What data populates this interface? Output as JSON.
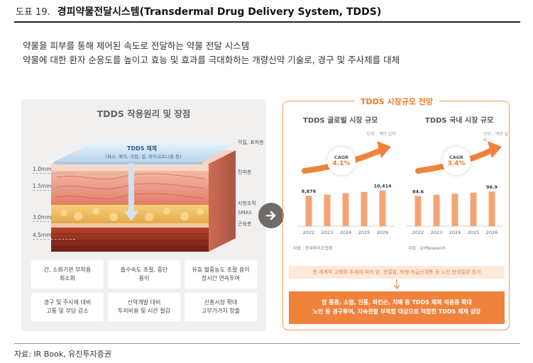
{
  "header": {
    "figure_number": "도표 19.",
    "title": "경피약물전달시스템(Transdermal Drug Delivery System, TDDS)"
  },
  "intro": {
    "line1": "약물을 피부를 통해 제어된 속도로 전달하는 약물 전달 시스템",
    "line2": "약물에 대한 환자 순응도를 높이고 효능 및 효과를 극대화하는 개량신약 기술로, 경구 및 주사제를 대체"
  },
  "left_panel": {
    "title": "TDDS 작용원리 및 장점",
    "formulation_title": "TDDS 제제",
    "formulation_sub": "(파스, 패치, 크림, 겔, 마이크로니들 등)",
    "depths": [
      "1.0mm",
      "1.5mm",
      "3.0mm",
      "4.5mm"
    ],
    "layers": [
      "각질, 표피층",
      "진피층",
      "지방조직",
      "SMAS",
      "근육층"
    ],
    "benefits": [
      "간, 소화기관 부작용\n최소화",
      "흡수속도 조절, 중단\n용이",
      "유효 혈중농도 조절 용이\n장시간 연속투여",
      "경구 및 주사제 대비\n고통 및 부담 감소",
      "신약개발 대비\n투자비용 및 시간 절감",
      "신흥시장 확대\n고부가가치 창출"
    ]
  },
  "right_panel": {
    "title": "TDDS 시장규모 전망",
    "global": {
      "title": "TDDS 글로벌 시장 규모",
      "unit": "단위 : 백만 달러",
      "cagr_label": "CAGR",
      "cagr_value": "4.1%",
      "source": "자료 : 한국바이오협회"
    },
    "domestic": {
      "title": "TDDS 국내 시장 규모",
      "unit": "단위 : 백만 달러",
      "cagr_label": "CAGR",
      "cagr_value": "3.4%",
      "source": "자료 : QYResearch"
    },
    "summary_line": "전 세계적 고령화 추세에 따라 암, 관절염, 퇴행·하급신경통 등 노인 만성질환 증가",
    "summary_box_line1": "암 통증, 소염, 진통, 파킨슨, 치매 등 TDDS 제제 적용증 확대",
    "summary_box_line2": "노인 등 경구투여, 지속관찰 부적합 대상으로 적합한 TDDS 제제 성장"
  },
  "chart_data": [
    {
      "type": "bar",
      "title": "TDDS 글로벌 시장 규모",
      "categories": [
        "2022",
        "2023",
        "2024",
        "2025",
        "2026"
      ],
      "values": [
        8876,
        9240,
        9619,
        10014,
        10414
      ],
      "data_labels": [
        "8,876",
        "",
        "",
        "",
        "10,414"
      ],
      "ylim": [
        0,
        12000
      ],
      "color": "#f4a474"
    },
    {
      "type": "bar",
      "title": "TDDS 국내 시장 규모",
      "categories": [
        "2022",
        "2023",
        "2024",
        "2025",
        "2026"
      ],
      "values": [
        84.6,
        87.5,
        90.5,
        93.6,
        96.9
      ],
      "data_labels": [
        "84.6",
        "",
        "",
        "",
        "96.9"
      ],
      "ylim": [
        0,
        115
      ],
      "color": "#f4a474"
    }
  ],
  "footer": {
    "source": "자료: IR Book, 유진투자증권"
  }
}
